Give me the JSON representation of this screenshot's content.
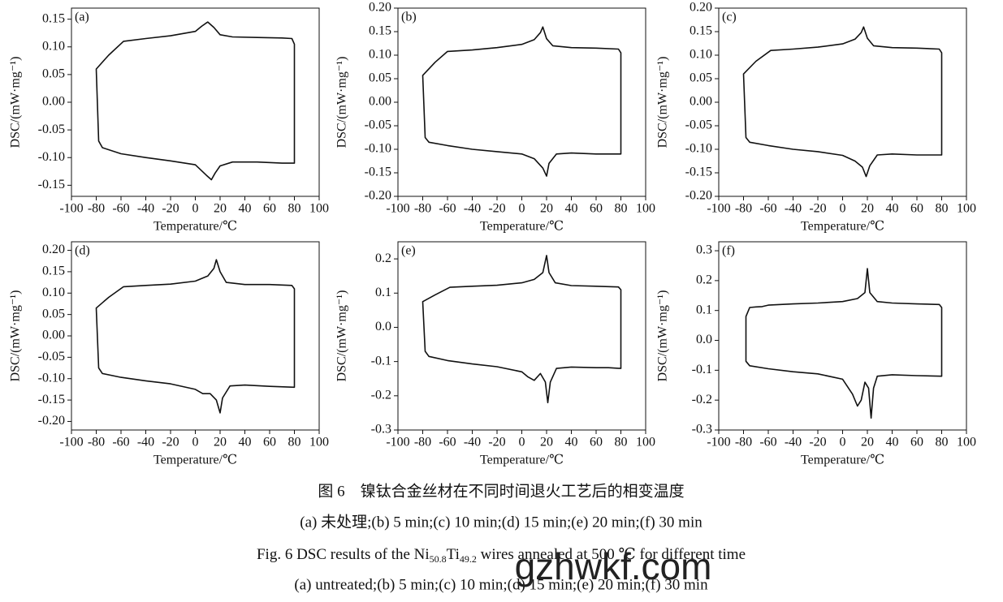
{
  "chart_data": [
    {
      "type": "line",
      "panel": "(a)",
      "xlabel": "Temperature/℃",
      "ylabel": "DSC/(mW·mg⁻¹)",
      "xlim": [
        -100,
        100
      ],
      "xticks": [
        -100,
        -80,
        -60,
        -40,
        -20,
        0,
        20,
        40,
        60,
        80,
        100
      ],
      "ylim": [
        -0.17,
        0.17
      ],
      "yticks": [
        -0.15,
        {
          "value": -0.1,
          "label": "-0.10"
        },
        -0.05,
        {
          "value": 0,
          "label": "0.00"
        },
        0.05,
        {
          "value": 0.1,
          "label": "0.10"
        },
        0.15
      ],
      "series": [
        {
          "color": "#111111",
          "x": [
            -80,
            -70,
            -58,
            -40,
            -20,
            0,
            5,
            10,
            15,
            20,
            30,
            50,
            70,
            78,
            80,
            80,
            70,
            50,
            30,
            20,
            16,
            13,
            9,
            0,
            -20,
            -40,
            -60,
            -75,
            -78
          ],
          "values": [
            0.06,
            0.085,
            0.11,
            0.115,
            0.12,
            0.128,
            0.137,
            0.145,
            0.135,
            0.122,
            0.118,
            0.117,
            0.116,
            0.115,
            0.105,
            -0.11,
            -0.11,
            -0.108,
            -0.108,
            -0.115,
            -0.128,
            -0.14,
            -0.132,
            -0.113,
            -0.106,
            -0.1,
            -0.093,
            -0.082,
            -0.07
          ]
        }
      ]
    },
    {
      "type": "line",
      "panel": "(b)",
      "xlabel": "Temperature/℃",
      "ylabel": "DSC/(mW·mg⁻¹)",
      "xlim": [
        -100,
        100
      ],
      "xticks": [
        -100,
        -80,
        -60,
        -40,
        -20,
        0,
        20,
        40,
        60,
        80,
        100
      ],
      "ylim": [
        -0.2,
        0.2
      ],
      "yticks": [
        {
          "value": -0.2,
          "label": "-0.20"
        },
        -0.15,
        {
          "value": -0.1,
          "label": "-0.10"
        },
        -0.05,
        {
          "value": 0,
          "label": "0.00"
        },
        0.05,
        {
          "value": 0.1,
          "label": "0.10"
        },
        0.15,
        {
          "value": 0.2,
          "label": "0.20"
        }
      ],
      "series": [
        {
          "color": "#111111",
          "x": [
            -80,
            -70,
            -60,
            -40,
            -20,
            0,
            10,
            15,
            17,
            20,
            25,
            40,
            60,
            78,
            80,
            80,
            60,
            40,
            28,
            22,
            20,
            17,
            10,
            0,
            -20,
            -40,
            -60,
            -75,
            -78
          ],
          "values": [
            0.057,
            0.085,
            0.108,
            0.111,
            0.116,
            0.123,
            0.133,
            0.148,
            0.16,
            0.135,
            0.12,
            0.116,
            0.115,
            0.113,
            0.105,
            -0.11,
            -0.11,
            -0.108,
            -0.11,
            -0.13,
            -0.157,
            -0.14,
            -0.12,
            -0.11,
            -0.105,
            -0.1,
            -0.092,
            -0.085,
            -0.075
          ]
        }
      ]
    },
    {
      "type": "line",
      "panel": "(c)",
      "xlabel": "Temperature/℃",
      "ylabel": "DSC/(mW·mg⁻¹)",
      "xlim": [
        -100,
        100
      ],
      "xticks": [
        -100,
        -80,
        -60,
        -40,
        -20,
        0,
        20,
        40,
        60,
        80,
        100
      ],
      "ylim": [
        -0.2,
        0.2
      ],
      "yticks": [
        {
          "value": -0.2,
          "label": "-0.20"
        },
        -0.15,
        {
          "value": -0.1,
          "label": "-0.10"
        },
        -0.05,
        {
          "value": 0,
          "label": "0.00"
        },
        0.05,
        {
          "value": 0.1,
          "label": "0.10"
        },
        0.15,
        {
          "value": 0.2,
          "label": "0.20"
        }
      ],
      "series": [
        {
          "color": "#111111",
          "x": [
            -80,
            -70,
            -58,
            -40,
            -20,
            0,
            10,
            15,
            17,
            20,
            25,
            40,
            60,
            78,
            80,
            80,
            60,
            40,
            28,
            22,
            19,
            16,
            10,
            0,
            -20,
            -40,
            -60,
            -75,
            -78
          ],
          "values": [
            0.06,
            0.087,
            0.11,
            0.113,
            0.117,
            0.124,
            0.134,
            0.148,
            0.16,
            0.136,
            0.12,
            0.116,
            0.115,
            0.113,
            0.105,
            -0.112,
            -0.112,
            -0.11,
            -0.112,
            -0.135,
            -0.158,
            -0.138,
            -0.125,
            -0.113,
            -0.105,
            -0.1,
            -0.092,
            -0.085,
            -0.075
          ]
        }
      ]
    },
    {
      "type": "line",
      "panel": "(d)",
      "xlabel": "Temperature/℃",
      "ylabel": "DSC/(mW·mg⁻¹)",
      "xlim": [
        -100,
        100
      ],
      "xticks": [
        -100,
        -80,
        -60,
        -40,
        -20,
        0,
        20,
        40,
        60,
        80,
        100
      ],
      "ylim": [
        -0.22,
        0.22
      ],
      "yticks": [
        {
          "value": -0.2,
          "label": "-0.20"
        },
        -0.15,
        {
          "value": -0.1,
          "label": "-0.10"
        },
        -0.05,
        {
          "value": 0,
          "label": "0.00"
        },
        0.05,
        {
          "value": 0.1,
          "label": "0.10"
        },
        0.15,
        {
          "value": 0.2,
          "label": "0.20"
        }
      ],
      "series": [
        {
          "color": "#111111",
          "x": [
            -80,
            -70,
            -58,
            -40,
            -20,
            0,
            10,
            15,
            17,
            20,
            25,
            40,
            60,
            78,
            80,
            80,
            60,
            40,
            28,
            22,
            20,
            17,
            12,
            6,
            0,
            -20,
            -40,
            -60,
            -75,
            -78
          ],
          "values": [
            0.065,
            0.09,
            0.115,
            0.118,
            0.121,
            0.128,
            0.14,
            0.158,
            0.178,
            0.15,
            0.125,
            0.12,
            0.12,
            0.118,
            0.11,
            -0.12,
            -0.118,
            -0.115,
            -0.117,
            -0.145,
            -0.18,
            -0.15,
            -0.135,
            -0.135,
            -0.125,
            -0.112,
            -0.105,
            -0.097,
            -0.088,
            -0.075
          ]
        }
      ]
    },
    {
      "type": "line",
      "panel": "(e)",
      "xlabel": "Temperature/℃",
      "ylabel": "DSC/(mW·mg⁻¹)",
      "xlim": [
        -100,
        100
      ],
      "xticks": [
        -100,
        -80,
        -60,
        -40,
        -20,
        0,
        20,
        40,
        60,
        80,
        100
      ],
      "ylim": [
        -0.3,
        0.25
      ],
      "yticks": [
        -0.3,
        -0.2,
        -0.1,
        {
          "value": 0,
          "label": "0.0"
        },
        0.1,
        0.2
      ],
      "series": [
        {
          "color": "#111111",
          "x": [
            -80,
            -70,
            -58,
            -40,
            -20,
            0,
            10,
            17,
            20,
            22,
            27,
            40,
            60,
            78,
            80,
            80,
            70,
            60,
            40,
            28,
            23,
            21,
            19,
            15,
            10,
            5,
            0,
            -20,
            -40,
            -60,
            -75,
            -78
          ],
          "values": [
            0.075,
            0.095,
            0.117,
            0.12,
            0.123,
            0.13,
            0.14,
            0.16,
            0.21,
            0.16,
            0.13,
            0.122,
            0.12,
            0.118,
            0.11,
            -0.12,
            -0.118,
            -0.118,
            -0.116,
            -0.12,
            -0.16,
            -0.22,
            -0.16,
            -0.135,
            -0.155,
            -0.145,
            -0.13,
            -0.115,
            -0.107,
            -0.097,
            -0.085,
            -0.07
          ]
        }
      ]
    },
    {
      "type": "line",
      "panel": "(f)",
      "xlabel": "Temperature/℃",
      "ylabel": "DSC/(mW·mg⁻¹)",
      "xlim": [
        -100,
        100
      ],
      "xticks": [
        -100,
        -80,
        -60,
        -40,
        -20,
        0,
        20,
        40,
        60,
        80,
        100
      ],
      "ylim": [
        -0.3,
        0.33
      ],
      "yticks": [
        -0.3,
        -0.2,
        -0.1,
        {
          "value": 0,
          "label": "0.0"
        },
        0.1,
        0.2,
        0.3
      ],
      "series": [
        {
          "color": "#111111",
          "x": [
            -78,
            -75,
            -70,
            -65,
            -60,
            -40,
            -20,
            0,
            12,
            18,
            20,
            22,
            28,
            40,
            60,
            78,
            80,
            80,
            60,
            40,
            28,
            25,
            23,
            21,
            18,
            15,
            12,
            8,
            0,
            -20,
            -40,
            -60,
            -75,
            -78
          ],
          "values": [
            0.08,
            0.11,
            0.112,
            0.113,
            0.118,
            0.122,
            0.125,
            0.13,
            0.14,
            0.16,
            0.24,
            0.16,
            0.13,
            0.125,
            0.122,
            0.12,
            0.11,
            -0.12,
            -0.118,
            -0.115,
            -0.12,
            -0.16,
            -0.26,
            -0.16,
            -0.14,
            -0.2,
            -0.22,
            -0.18,
            -0.13,
            -0.112,
            -0.105,
            -0.095,
            -0.085,
            -0.07
          ]
        }
      ]
    }
  ],
  "caption": {
    "cn_title": "图 6　镍钛合金丝材在不同时间退火工艺后的相变温度",
    "cn_items": "(a) 未处理;(b)  5 min;(c)  10 min;(d)  15 min;(e)  20 min;(f) 30 min",
    "en_title": {
      "prefix": "Fig. 6  DSC results of the Ni",
      "sub1": "50.8",
      "mid": "Ti",
      "sub2": "49.2",
      "suffix": " wires annealed at 500 ℃ for different time"
    },
    "en_items": "(a) untreated;(b)  5 min;(c)  10 min;(d)  15 min;(e)  20 min;(f) 30 min"
  },
  "watermark": "gzhwkf.com"
}
